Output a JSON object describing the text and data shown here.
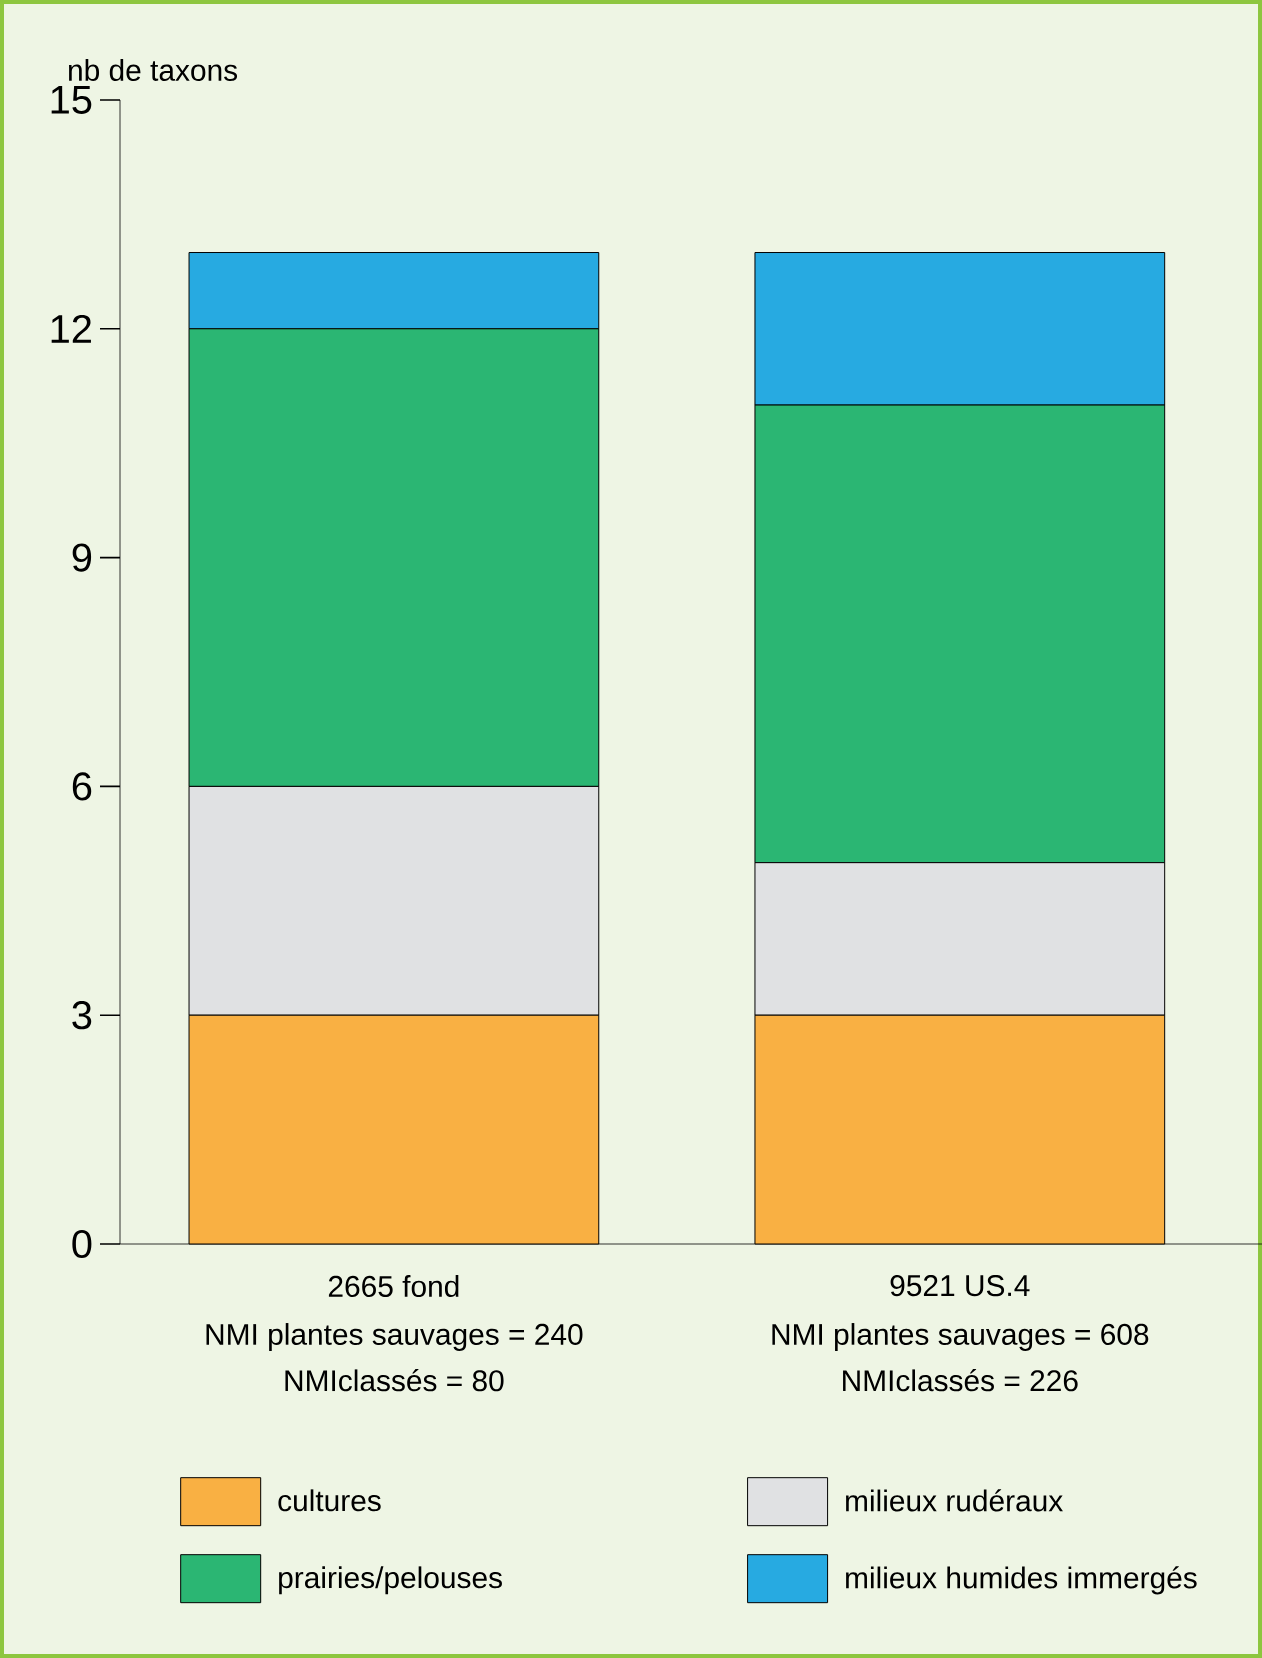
{
  "chart_data": {
    "type": "bar",
    "stacked": true,
    "ylabel": "nb de taxons",
    "categories": [
      "2665 fond",
      "9521 US.4"
    ],
    "annotations": [
      "NMI plantes sauvages  = 240",
      "NMIclassés = 80",
      "NMI plantes sauvages = 608",
      "NMIclassés = 226"
    ],
    "series": [
      {
        "name": "cultures",
        "color": "#f9b043",
        "values": [
          3,
          3
        ]
      },
      {
        "name": "milieux rudéraux",
        "color": "#e0e1e3",
        "values": [
          3,
          2
        ]
      },
      {
        "name": "prairies/pelouses",
        "color": "#2bb673",
        "values": [
          6,
          6
        ]
      },
      {
        "name": "milieux humides immergés",
        "color": "#27aae1",
        "values": [
          1,
          2
        ]
      }
    ],
    "ylim": [
      0,
      15
    ],
    "yticks": [
      0,
      3,
      6,
      9,
      12,
      15
    ],
    "grid": false,
    "legend": "bottom"
  }
}
